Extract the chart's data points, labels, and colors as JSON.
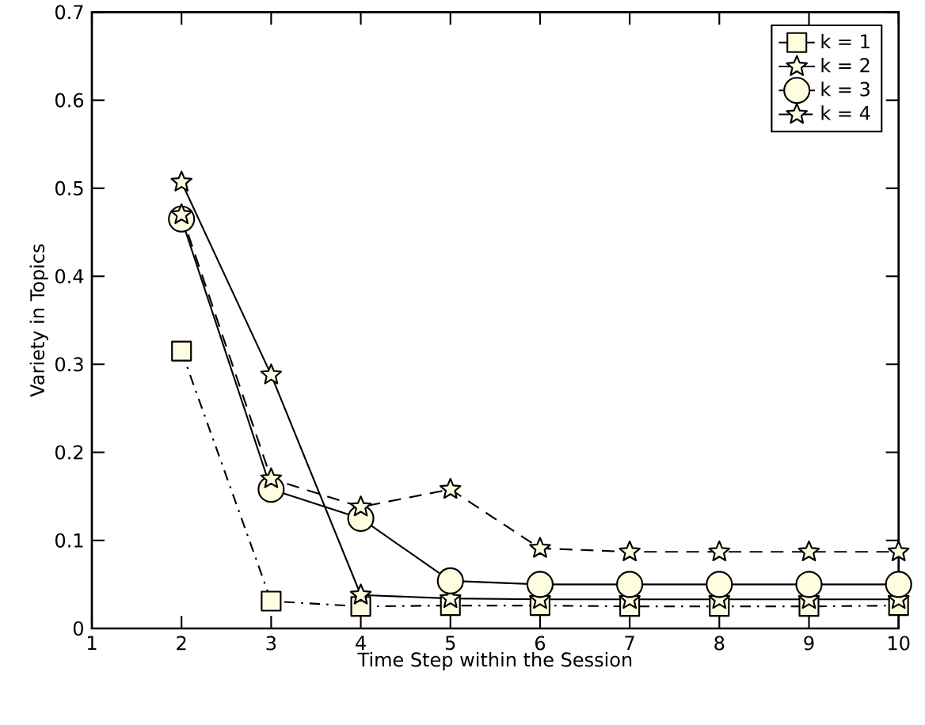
{
  "chart_data": {
    "type": "line",
    "xlabel": "Time Step within the Session",
    "ylabel": "Variety in Topics",
    "x": [
      2,
      3,
      4,
      5,
      6,
      7,
      8,
      9,
      10
    ],
    "series": [
      {
        "name": "k = 1",
        "color": "#000000",
        "marker": "square",
        "line_style": "dashdot",
        "values": [
          0.315,
          0.031,
          0.025,
          0.026,
          0.026,
          0.025,
          0.025,
          0.025,
          0.026
        ]
      },
      {
        "name": "k = 2",
        "color": "#000000",
        "marker": "star",
        "line_style": "solid",
        "values": [
          0.507,
          0.288,
          0.038,
          0.034,
          0.033,
          0.033,
          0.033,
          0.033,
          0.033
        ]
      },
      {
        "name": "k = 3",
        "color": "#000000",
        "marker": "circle",
        "line_style": "solid",
        "values": [
          0.465,
          0.158,
          0.125,
          0.054,
          0.05,
          0.05,
          0.05,
          0.05,
          0.05
        ]
      },
      {
        "name": "k = 4",
        "color": "#000000",
        "marker": "star",
        "line_style": "dashed",
        "values": [
          0.47,
          0.17,
          0.138,
          0.158,
          0.091,
          0.087,
          0.087,
          0.087,
          0.087
        ]
      }
    ],
    "xlim": [
      1,
      10
    ],
    "ylim": [
      0,
      0.7
    ],
    "xticks": [
      1,
      2,
      3,
      4,
      5,
      6,
      7,
      8,
      9,
      10
    ],
    "yticks": [
      0,
      0.1,
      0.2,
      0.3,
      0.4,
      0.5,
      0.6,
      0.7
    ],
    "grid": false,
    "legend": "top right"
  }
}
